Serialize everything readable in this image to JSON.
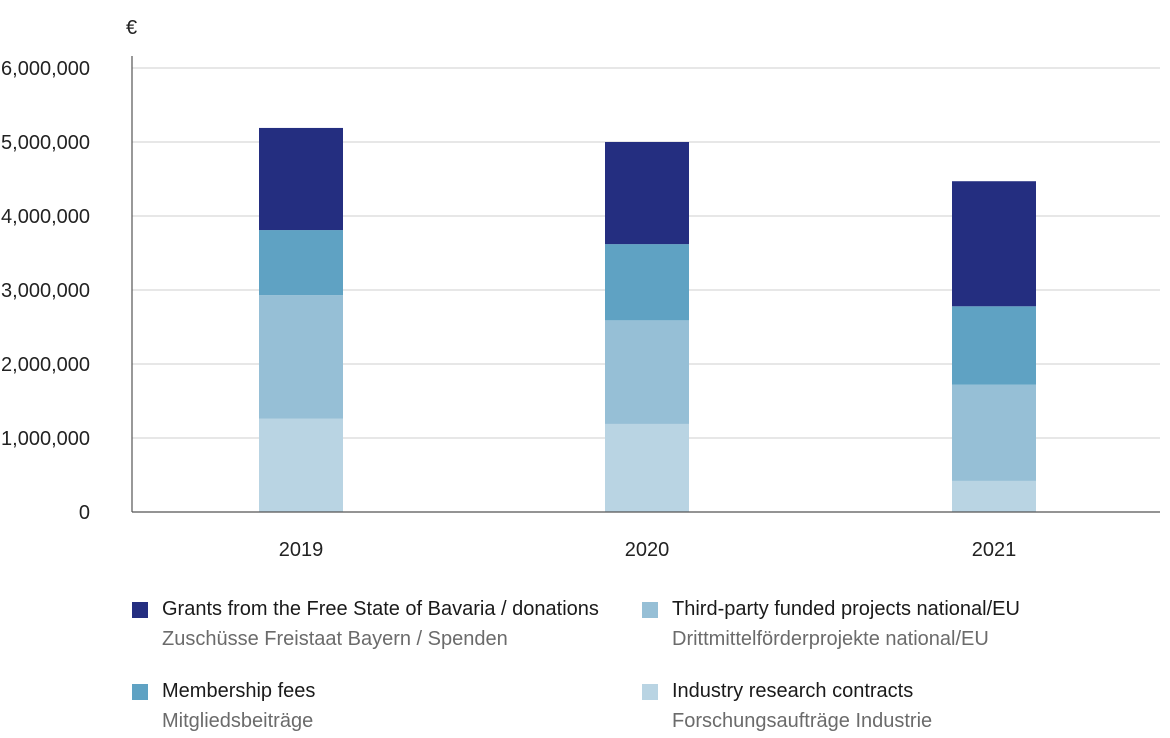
{
  "chart_data": {
    "type": "bar",
    "stacked": true,
    "unit": "€",
    "categories": [
      "2019",
      "2020",
      "2021"
    ],
    "ylim": [
      0,
      6000000
    ],
    "yticks": [
      "0",
      "1,000,000",
      "2,000,000",
      "3,000,000",
      "4,000,000",
      "5,000,000",
      "6,000,000"
    ],
    "ytick_values": [
      0,
      1000000,
      2000000,
      3000000,
      4000000,
      5000000,
      6000000
    ],
    "grid": true,
    "legend_position": "bottom",
    "series": [
      {
        "name": "Industry research contracts",
        "name_de": "Forschungsaufträge Industrie",
        "color": "#b9d4e3",
        "values": [
          1260000,
          1190000,
          420000
        ]
      },
      {
        "name": "Third-party funded projects national/EU",
        "name_de": "Drittmittelförderprojekte national/EU",
        "color": "#96bfd6",
        "values": [
          1670000,
          1400000,
          1300000
        ]
      },
      {
        "name": "Membership fees",
        "name_de": "Mitgliedsbeiträge",
        "color": "#5fa2c3",
        "values": [
          880000,
          1030000,
          1060000
        ]
      },
      {
        "name": "Grants from the Free State of Bavaria / donations",
        "name_de": "Zuschüsse Freistaat Bayern / Spenden",
        "color": "#242e80",
        "values": [
          1380000,
          1380000,
          1690000
        ]
      }
    ]
  },
  "legend": [
    {
      "en": "Grants from the Free State of Bavaria / donations",
      "de": "Zuschüsse Freistaat Bayern / Spenden",
      "color": "#242e80"
    },
    {
      "en": "Third-party funded projects national/EU",
      "de": "Drittmittelförderprojekte national/EU",
      "color": "#96bfd6"
    },
    {
      "en": "Membership fees",
      "de": "Mitgliedsbeiträge",
      "color": "#5fa2c3"
    },
    {
      "en": "Industry research contracts",
      "de": "Forschungsaufträge Industrie",
      "color": "#b9d4e3"
    }
  ]
}
